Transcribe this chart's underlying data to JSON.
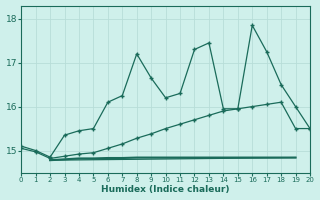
{
  "xlabel": "Humidex (Indice chaleur)",
  "xlim": [
    0,
    20
  ],
  "ylim": [
    14.5,
    18.3
  ],
  "bg_color": "#cff0eb",
  "grid_color": "#b8ddd8",
  "line_color": "#1a6b5a",
  "line1_x": [
    0,
    1,
    2,
    3,
    4,
    5,
    6,
    7,
    8,
    9,
    10,
    11,
    12,
    13,
    14,
    15,
    16,
    17,
    18,
    19,
    20
  ],
  "line1_y": [
    15.1,
    15.0,
    14.85,
    15.35,
    15.45,
    15.5,
    16.1,
    16.25,
    17.2,
    16.65,
    16.2,
    16.3,
    17.3,
    17.45,
    15.95,
    15.95,
    17.85,
    17.25,
    16.5,
    16.0,
    15.5
  ],
  "line2_x": [
    0,
    1,
    2,
    3,
    4,
    5,
    6,
    7,
    8,
    9,
    10,
    11,
    12,
    13,
    14,
    15,
    16,
    17,
    18,
    19,
    20
  ],
  "line2_y": [
    15.05,
    14.97,
    14.82,
    14.87,
    14.92,
    14.95,
    15.05,
    15.15,
    15.28,
    15.38,
    15.5,
    15.6,
    15.7,
    15.8,
    15.9,
    15.95,
    16.0,
    16.05,
    16.1,
    15.5,
    15.5
  ],
  "line3_x": [
    2,
    3,
    4,
    5,
    6,
    7,
    8,
    9,
    10,
    11,
    12,
    13,
    19
  ],
  "line3_y": [
    14.78,
    14.8,
    14.82,
    14.82,
    14.83,
    14.83,
    14.84,
    14.84,
    14.84,
    14.84,
    14.84,
    14.84,
    14.84
  ],
  "line4_x": [
    2,
    19
  ],
  "line4_y": [
    14.78,
    14.84
  ],
  "yticks": [
    15,
    16,
    17,
    18
  ],
  "xticks": [
    0,
    1,
    2,
    3,
    4,
    5,
    6,
    7,
    8,
    9,
    10,
    11,
    12,
    13,
    14,
    15,
    16,
    17,
    18,
    19,
    20
  ]
}
